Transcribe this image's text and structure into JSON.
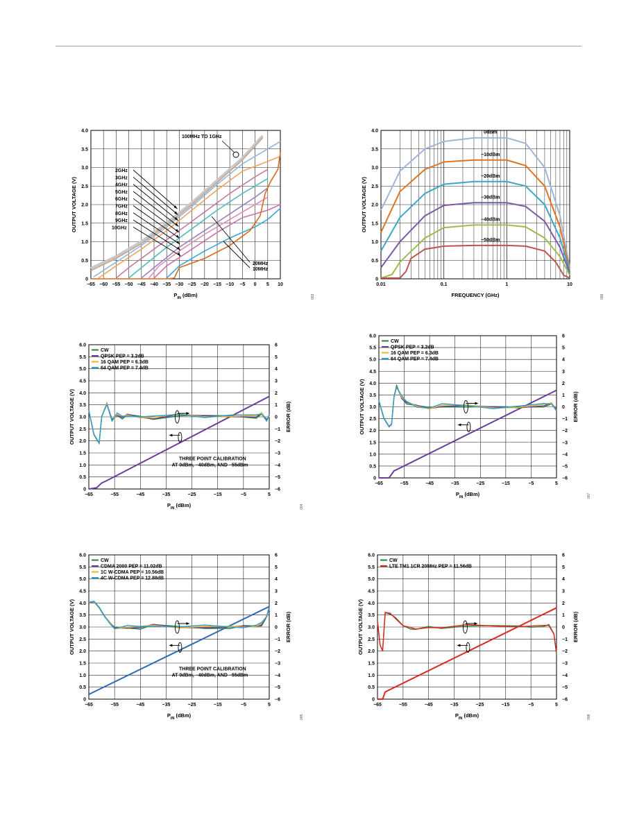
{
  "colors": {
    "grid": "#222222",
    "orange": "#d66a1c",
    "purple": "#6a3d9a",
    "blue": "#2a9fd6",
    "gold": "#f2b21b",
    "green": "#2f7d3b",
    "red": "#e0261e",
    "steel": "#2c6bb3"
  },
  "chart_data": [
    {
      "id": "c1",
      "type": "line",
      "xlabel": "P_IN (dBm)",
      "ylabel": "OUTPUT VOLTAGE (V)",
      "xlim": [
        -65,
        10
      ],
      "ylim": [
        0,
        4
      ],
      "xticks": [
        "-65",
        "-60",
        "-55",
        "-50",
        "-45",
        "-40",
        "-35",
        "-30",
        "-25",
        "-20",
        "-15",
        "-10",
        "-5",
        "0",
        "5",
        "10"
      ],
      "yticks": [
        "0",
        "0.5",
        "1.0",
        "1.5",
        "2.0",
        "2.5",
        "3.0",
        "3.5",
        "4.0"
      ],
      "figure_id": "003",
      "annotations": [
        "100MHz TO 1GHz",
        "2GHz",
        "3GHz",
        "4GHz",
        "5GHz",
        "6GHz",
        "7GHz",
        "8GHz",
        "9GHz",
        "10GHz",
        "20MHz",
        "10MHz"
      ],
      "series": [
        {
          "color": "#c8c8c8",
          "x": [
            -65,
            -55,
            -45,
            -35,
            -25,
            -15,
            -5,
            3
          ],
          "y": [
            0.28,
            0.6,
            1.0,
            1.5,
            2.05,
            2.65,
            3.25,
            3.85
          ]
        },
        {
          "color": "#c9a48a",
          "x": [
            -65,
            -55,
            -45,
            -35,
            -25,
            -15,
            -5,
            3
          ],
          "y": [
            0.22,
            0.55,
            0.95,
            1.45,
            2.0,
            2.6,
            3.2,
            3.8
          ]
        },
        {
          "color": "#8fb7d9",
          "x": [
            -64,
            -55,
            -45,
            -35,
            -25,
            -15,
            -5,
            10
          ],
          "y": [
            0.05,
            0.45,
            0.9,
            1.4,
            1.95,
            2.55,
            3.1,
            3.7
          ]
        },
        {
          "color": "#f0a35a",
          "x": [
            -62,
            -55,
            -45,
            -35,
            -25,
            -15,
            -5,
            10
          ],
          "y": [
            0.02,
            0.35,
            0.8,
            1.3,
            1.85,
            2.4,
            2.9,
            3.3
          ]
        },
        {
          "color": "#c77aa0",
          "x": [
            -55,
            -50,
            -40,
            -30,
            -20,
            -10,
            0,
            5
          ],
          "y": [
            0.02,
            0.3,
            0.8,
            1.3,
            1.8,
            2.3,
            2.75,
            2.95
          ]
        },
        {
          "color": "#4fb9c4",
          "x": [
            -50,
            -45,
            -35,
            -25,
            -15,
            -5,
            5
          ],
          "y": [
            0.02,
            0.3,
            0.85,
            1.35,
            1.85,
            2.3,
            2.7
          ]
        },
        {
          "color": "#9a7fc2",
          "x": [
            -45,
            -40,
            -30,
            -20,
            -10,
            0,
            5
          ],
          "y": [
            0.02,
            0.3,
            0.85,
            1.3,
            1.75,
            2.2,
            2.45
          ]
        },
        {
          "color": "#e08fb0",
          "x": [
            -42,
            -38,
            -30,
            -20,
            -10,
            0,
            5
          ],
          "y": [
            0.02,
            0.35,
            0.75,
            1.2,
            1.6,
            2.0,
            2.2
          ]
        },
        {
          "color": "#cf6fa6",
          "x": [
            -40,
            -35,
            -25,
            -15,
            -5,
            5,
            10
          ],
          "y": [
            0.02,
            0.35,
            0.8,
            1.25,
            1.65,
            1.85,
            2.0
          ]
        },
        {
          "color": "#3aa6d6",
          "x": [
            -35,
            -30,
            -20,
            -10,
            0,
            5,
            10
          ],
          "y": [
            0.02,
            0.35,
            0.75,
            1.1,
            1.4,
            1.6,
            1.9
          ]
        },
        {
          "color": "#d66a1c",
          "x": [
            -65,
            -35,
            -32,
            -30,
            -20,
            -10,
            -2,
            2,
            4,
            6,
            9,
            10
          ],
          "y": [
            0,
            0,
            0.02,
            0.3,
            0.55,
            0.9,
            1.3,
            1.7,
            2.3,
            2.6,
            2.95,
            3.4
          ]
        }
      ]
    },
    {
      "id": "c2",
      "type": "line",
      "xlabel": "FREQUENCY (GHz)",
      "ylabel": "OUTPUT VOLTAGE (V)",
      "xscale": "log",
      "xlim": [
        0.01,
        10
      ],
      "ylim": [
        0,
        4
      ],
      "xticks": [
        "0.01",
        "0.1",
        "1",
        "10"
      ],
      "yticks": [
        "0",
        "0.5",
        "1.0",
        "1.5",
        "2.0",
        "2.5",
        "3.0",
        "3.5",
        "4.0"
      ],
      "figure_id": "006",
      "series": [
        {
          "name": "0dBm",
          "color": "#9db4d6",
          "x": [
            0.01,
            0.02,
            0.05,
            0.1,
            0.3,
            1,
            2,
            4,
            7,
            10
          ],
          "y": [
            1.85,
            2.9,
            3.5,
            3.7,
            3.8,
            3.8,
            3.65,
            3.0,
            1.7,
            0.3
          ]
        },
        {
          "name": "−10dBm",
          "color": "#e0731f",
          "x": [
            0.01,
            0.02,
            0.05,
            0.1,
            0.3,
            1,
            2,
            4,
            7,
            10
          ],
          "y": [
            1.25,
            2.35,
            2.95,
            3.15,
            3.2,
            3.2,
            3.05,
            2.5,
            1.4,
            0.25
          ]
        },
        {
          "name": "−20dBm",
          "color": "#3aa6c8",
          "x": [
            0.01,
            0.02,
            0.05,
            0.1,
            0.3,
            1,
            2,
            4,
            7,
            10
          ],
          "y": [
            0.75,
            1.65,
            2.3,
            2.55,
            2.62,
            2.62,
            2.5,
            2.0,
            1.1,
            0.2
          ]
        },
        {
          "name": "−30dBm",
          "color": "#7a5aa6",
          "x": [
            0.01,
            0.02,
            0.05,
            0.1,
            0.3,
            1,
            2,
            4,
            7,
            10
          ],
          "y": [
            0.3,
            1.0,
            1.7,
            1.98,
            2.05,
            2.05,
            1.95,
            1.55,
            0.85,
            0.15
          ]
        },
        {
          "name": "−40dBm",
          "color": "#9cbc4a",
          "x": [
            0.01,
            0.015,
            0.02,
            0.05,
            0.1,
            0.3,
            1,
            2,
            4,
            7,
            10
          ],
          "y": [
            0.02,
            0.12,
            0.45,
            1.1,
            1.38,
            1.45,
            1.45,
            1.4,
            1.1,
            0.6,
            0.1
          ]
        },
        {
          "name": "−50dBm",
          "color": "#c0504d",
          "x": [
            0.01,
            0.02,
            0.025,
            0.03,
            0.05,
            0.1,
            0.3,
            1,
            2,
            4,
            6,
            8,
            10
          ],
          "y": [
            0.02,
            0.02,
            0.2,
            0.55,
            0.8,
            0.88,
            0.9,
            0.9,
            0.88,
            0.75,
            0.45,
            0.1,
            0.02
          ]
        }
      ]
    },
    {
      "id": "c3",
      "type": "line",
      "xlabel": "P_IN (dBm)",
      "ylabel": "OUTPUT VOLTAGE (V)",
      "y2label": "ERROR (dB)",
      "xlim": [
        -65,
        5
      ],
      "ylim": [
        0,
        6
      ],
      "y2lim": [
        -6,
        6
      ],
      "xticks": [
        "-65",
        "-55",
        "-45",
        "-35",
        "-25",
        "-15",
        "-5",
        "5"
      ],
      "yticks": [
        "0",
        "0.5",
        "1.0",
        "1.5",
        "2.0",
        "2.5",
        "3.0",
        "3.5",
        "4.0",
        "4.5",
        "5.0",
        "5.5",
        "6.0"
      ],
      "y2ticks": [
        "−6",
        "−5",
        "−4",
        "−3",
        "−2",
        "−1",
        "0",
        "1",
        "2",
        "3",
        "4",
        "5",
        "6"
      ],
      "figure_id": "004",
      "annotations": [
        "THREE POINT CALIBRATION",
        "AT 0dBm, −40dBm, AND −55dBm"
      ],
      "series": [
        {
          "name": "CW",
          "color": "#2f7d3b"
        },
        {
          "name": "QPSK PEP = 3.2dB",
          "color": "#6a3d9a"
        },
        {
          "name": "16 QAM PEP = 6.3dB",
          "color": "#f2b21b"
        },
        {
          "name": "64 QAM PEP = 7.4dB",
          "color": "#2a9fd6"
        }
      ],
      "voltage": {
        "x": [
          -65,
          -62,
          -60,
          -58,
          5
        ],
        "y": [
          0,
          0.05,
          0.25,
          0.35,
          3.85
        ]
      },
      "error": {
        "x": [
          -65,
          -63,
          -61,
          -60,
          -58,
          -56,
          -54,
          -52,
          -50,
          -45,
          -40,
          -30,
          -20,
          -10,
          0,
          2,
          4,
          5
        ],
        "y": [
          0.5,
          -1.5,
          -2.2,
          0,
          1,
          -0.3,
          0.2,
          -0.1,
          0.1,
          0,
          -0.1,
          0.1,
          0,
          0.1,
          0,
          0.2,
          -0.3,
          0.1
        ]
      }
    },
    {
      "id": "c4",
      "type": "line",
      "xlabel": "P_IN (dBm)",
      "ylabel": "OUTPUT VOLTAGE (V)",
      "y2label": "ERROR (dB)",
      "xlim": [
        -65,
        5
      ],
      "ylim": [
        0,
        6
      ],
      "y2lim": [
        -6,
        6
      ],
      "xticks": [
        "-65",
        "-55",
        "-45",
        "-35",
        "-25",
        "-15",
        "-5",
        "5"
      ],
      "yticks": [
        "0",
        "0.5",
        "1.0",
        "1.5",
        "2.0",
        "2.5",
        "3.0",
        "3.5",
        "4.0",
        "4.5",
        "5.0",
        "5.5",
        "6.0"
      ],
      "y2ticks": [
        "−6",
        "−5",
        "−4",
        "−3",
        "−2",
        "−1",
        "0",
        "1",
        "2",
        "3",
        "4",
        "5",
        "6"
      ],
      "figure_id": "007",
      "series": [
        {
          "name": "CW",
          "color": "#2f7d3b"
        },
        {
          "name": "QPSK PEP = 3.2dB",
          "color": "#6a3d9a"
        },
        {
          "name": "16 QAM PEP = 6.3dB",
          "color": "#f2b21b"
        },
        {
          "name": "64 QAM PEP = 7.4dB",
          "color": "#2a9fd6"
        }
      ],
      "voltage": {
        "x": [
          -65,
          -61,
          -59,
          -57,
          5
        ],
        "y": [
          0,
          0,
          0.3,
          0.4,
          3.7
        ]
      },
      "error": {
        "x": [
          -65,
          -63,
          -61,
          -60,
          -59,
          -58,
          -56,
          -54,
          -50,
          -45,
          -40,
          -30,
          -20,
          -10,
          0,
          3,
          5
        ],
        "y": [
          0.5,
          -1,
          -1.7,
          -1.5,
          0.8,
          1.7,
          0.8,
          0.3,
          0,
          -0.1,
          0.1,
          0,
          -0.1,
          0,
          0.1,
          0.2,
          -0.3
        ]
      }
    },
    {
      "id": "c5",
      "type": "line",
      "xlabel": "P_IN (dBm)",
      "ylabel": "OUTPUT VOLTAGE (V)",
      "y2label": "ERROR (dB)",
      "xlim": [
        -65,
        5
      ],
      "ylim": [
        0,
        6
      ],
      "y2lim": [
        -6,
        6
      ],
      "xticks": [
        "-65",
        "-55",
        "-45",
        "-35",
        "-25",
        "-15",
        "-5",
        "5"
      ],
      "yticks": [
        "0",
        "0.5",
        "1.0",
        "1.5",
        "2.0",
        "2.5",
        "3.0",
        "3.5",
        "4.0",
        "4.5",
        "5.0",
        "5.5",
        "6.0"
      ],
      "y2ticks": [
        "−6",
        "−5",
        "−4",
        "−3",
        "−2",
        "−1",
        "0",
        "1",
        "2",
        "3",
        "4",
        "5",
        "6"
      ],
      "figure_id": "005",
      "annotations": [
        "THREE POINT CALIBRATION",
        "AT 0dBm, −40dBm, AND −55dBm"
      ],
      "series": [
        {
          "name": "CW",
          "color": "#2f7d3b"
        },
        {
          "name": "CDMA 2000 PEP = 11.02dB",
          "color": "#6a3d9a"
        },
        {
          "name": "1C W-CDMA PEP = 10.56dB",
          "color": "#f2b21b"
        },
        {
          "name": "4C W-CDMA PEP = 12.88dB",
          "color": "#2a9fd6"
        }
      ],
      "voltage": {
        "x": [
          -65,
          5
        ],
        "y": [
          0.2,
          3.85
        ]
      },
      "error": {
        "x": [
          -65,
          -63,
          -61,
          -59,
          -57,
          -55,
          -50,
          -45,
          -40,
          -30,
          -20,
          -10,
          -5,
          0,
          2,
          4,
          5
        ],
        "y": [
          2,
          2.1,
          1.6,
          0.9,
          0.3,
          -0.1,
          0,
          -0.1,
          0.1,
          0,
          0,
          -0.1,
          0,
          0.1,
          0.2,
          0.8,
          1.6
        ]
      }
    },
    {
      "id": "c6",
      "type": "line",
      "xlabel": "P_IN (dBm)",
      "ylabel": "OUTPUT VOLTAGE (V)",
      "y2label": "ERROR (dB)",
      "xlim": [
        -65,
        5
      ],
      "ylim": [
        0,
        6
      ],
      "y2lim": [
        -6,
        6
      ],
      "xticks": [
        "-65",
        "-55",
        "-45",
        "-35",
        "-25",
        "-15",
        "-5",
        "5"
      ],
      "yticks": [
        "0",
        "0.5",
        "1.0",
        "1.5",
        "2.0",
        "2.5",
        "3.0",
        "3.5",
        "4.0",
        "4.5",
        "5.0",
        "5.5",
        "6.0"
      ],
      "y2ticks": [
        "−6",
        "−5",
        "−4",
        "−3",
        "−2",
        "−1",
        "0",
        "1",
        "2",
        "3",
        "4",
        "5",
        "6"
      ],
      "figure_id": "008",
      "series": [
        {
          "name": "CW",
          "color": "#2f7d3b"
        },
        {
          "name": "LTE TM1 1CR 20MHz PEP = 11.56dB",
          "color": "#e0261e"
        }
      ],
      "voltage": {
        "x": [
          -65,
          -63,
          -62,
          5
        ],
        "y": [
          0,
          0,
          0.3,
          3.8
        ]
      },
      "error": {
        "x": [
          -65,
          -64,
          -63,
          -62,
          -60,
          -58,
          -55,
          -52,
          -50,
          -45,
          -40,
          -30,
          -20,
          -10,
          -5,
          0,
          2,
          4,
          5
        ],
        "y": [
          0.5,
          -1.5,
          -2,
          1.2,
          1,
          0.7,
          0.2,
          -0.1,
          -0.3,
          0,
          0,
          0.1,
          0,
          0.1,
          0.1,
          0,
          0.1,
          -0.5,
          -2.2
        ]
      }
    }
  ]
}
